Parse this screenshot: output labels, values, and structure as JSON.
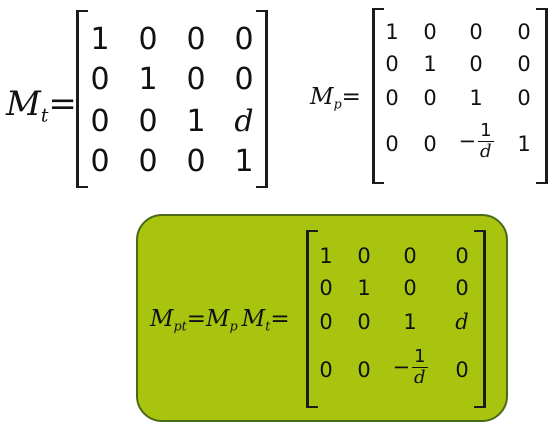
{
  "mt": {
    "label": "M",
    "sub": "t",
    "eq": "=",
    "rows": [
      [
        "1",
        "0",
        "0",
        "0"
      ],
      [
        "0",
        "1",
        "0",
        "0"
      ],
      [
        "0",
        "0",
        "1",
        "d"
      ],
      [
        "0",
        "0",
        "0",
        "1"
      ]
    ]
  },
  "mp": {
    "label": "M",
    "sub": "p",
    "eq": "=",
    "rows": [
      [
        "1",
        "0",
        "0",
        "0"
      ],
      [
        "0",
        "1",
        "0",
        "0"
      ],
      [
        "0",
        "0",
        "1",
        "0"
      ],
      [
        "0",
        "0",
        "-1/d",
        "1"
      ]
    ]
  },
  "mpt": {
    "label": "M",
    "sub": "pt",
    "rhs_m1": "M",
    "rhs_m1_sub": "p",
    "rhs_m2": "M",
    "rhs_m2_sub": "t",
    "eq": "=",
    "rows": [
      [
        "1",
        "0",
        "0",
        "0"
      ],
      [
        "0",
        "1",
        "0",
        "0"
      ],
      [
        "0",
        "0",
        "1",
        "d"
      ],
      [
        "0",
        "0",
        "-1/d",
        "0"
      ]
    ]
  },
  "fraction": {
    "num": "1",
    "den": "d",
    "minus": "−"
  },
  "colors": {
    "box_fill": "#a9c40f",
    "box_border": "#4a6a1a"
  }
}
